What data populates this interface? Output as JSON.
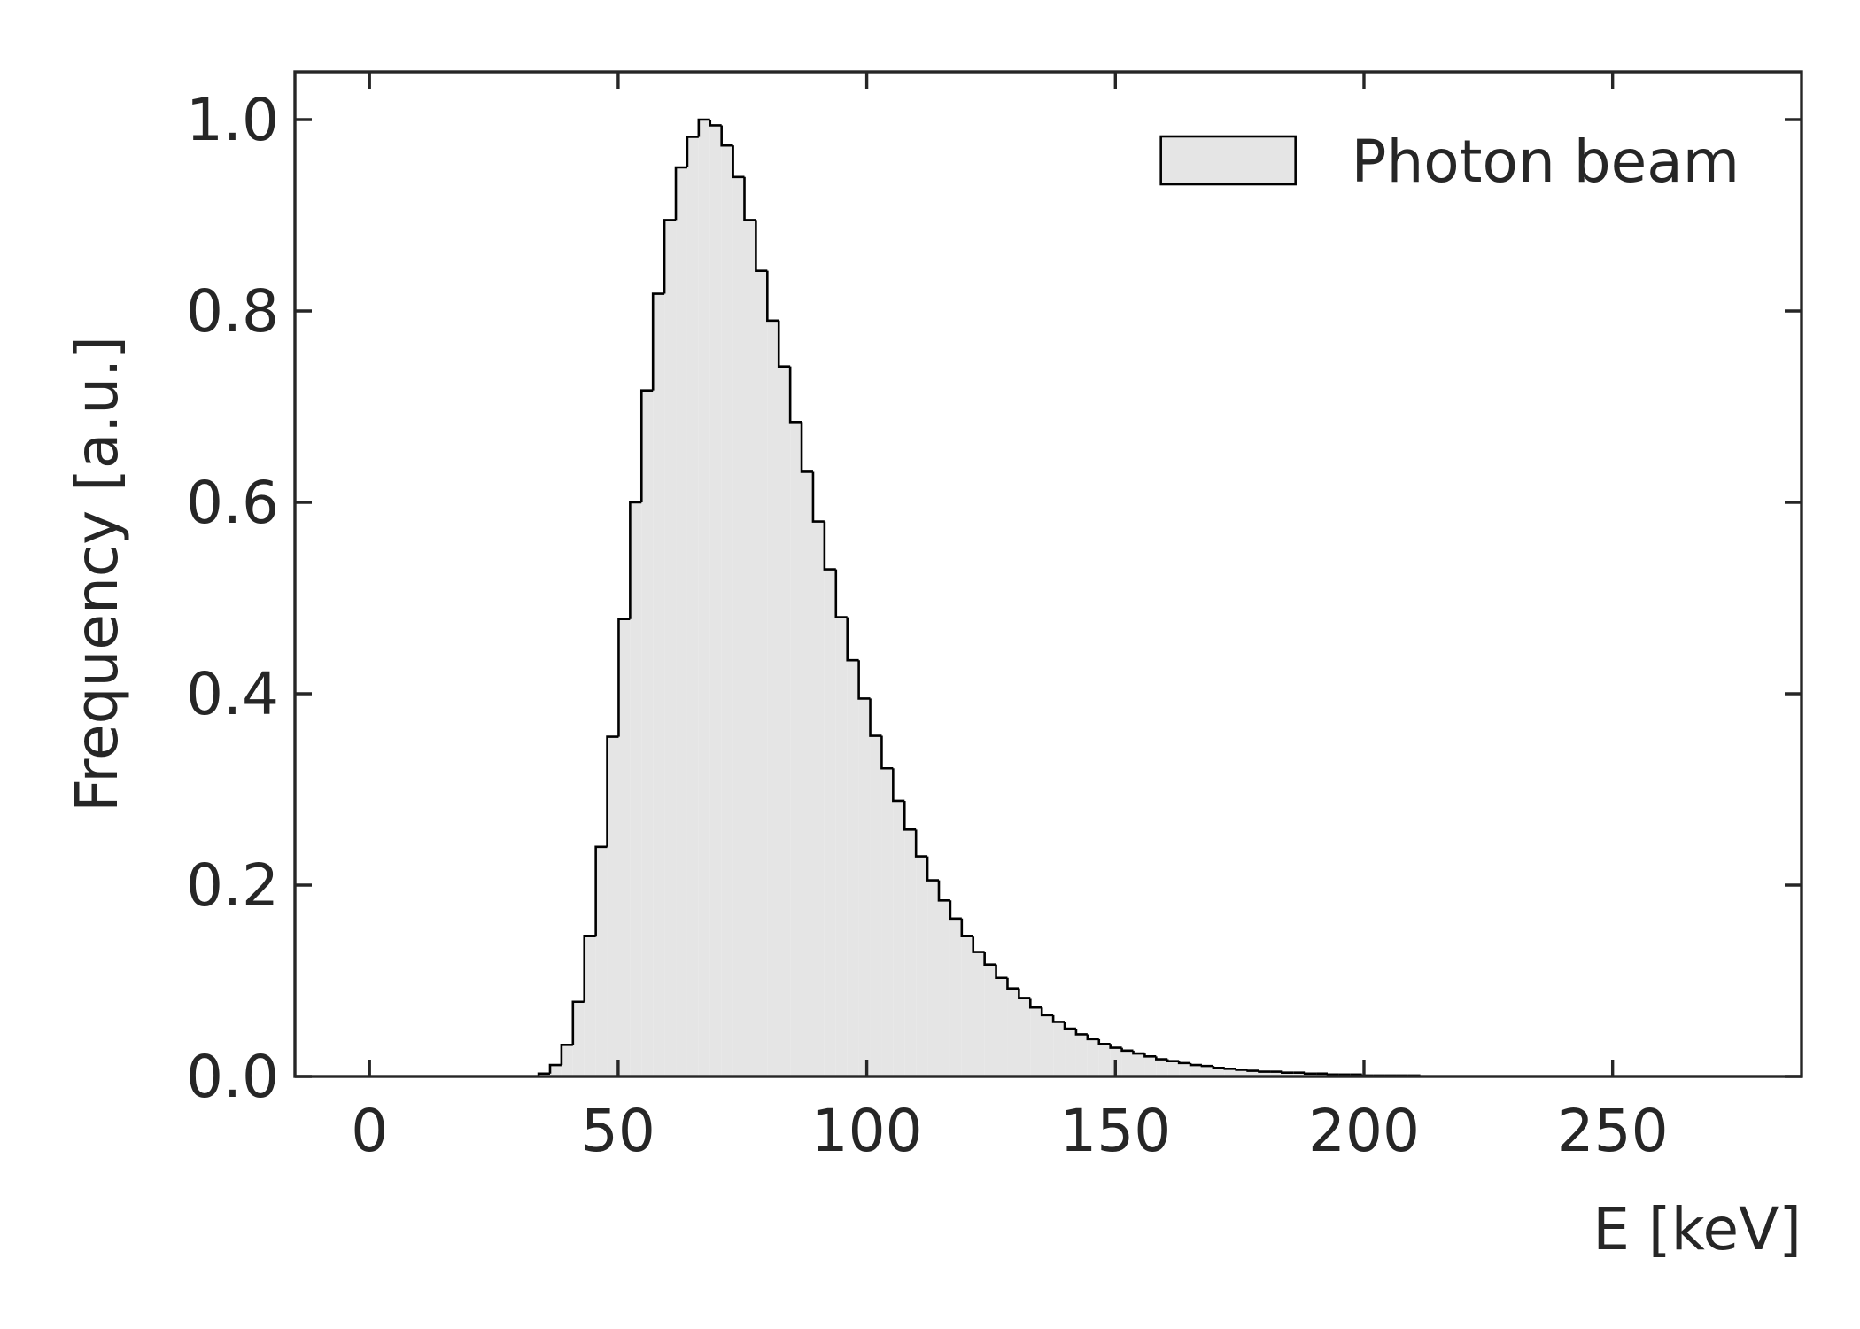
{
  "chart_data": {
    "type": "histogram",
    "xlabel": "E [keV]",
    "ylabel": "Frequency [a.u.]",
    "bins": [
      34,
      36.3,
      38.6,
      40.9,
      43.2,
      45.5,
      47.8,
      50.1,
      52.4,
      54.7,
      57,
      59.3,
      61.6,
      63.9,
      66.2,
      68.5,
      70.8,
      73.1,
      75.4,
      77.7,
      80,
      82.3,
      84.6,
      86.9,
      89.2,
      91.5,
      93.8,
      96.1,
      98.4,
      100.7,
      103,
      105.3,
      107.6,
      109.9,
      112.2,
      114.5,
      116.8,
      119.1,
      121.4,
      123.7,
      126,
      128.3,
      130.6,
      132.9,
      135.2,
      137.5,
      139.8,
      142.1,
      144.4,
      146.7,
      149,
      151.3,
      153.6,
      155.9,
      158.2,
      160.5,
      162.8,
      165.1,
      167.4,
      169.7,
      172,
      174.3,
      176.6,
      178.9,
      181.2,
      183.5,
      185.8,
      188.1,
      190.4,
      192.7,
      195,
      197.3,
      199.6,
      201.9,
      204.2,
      206.5,
      208.8,
      211.1
    ],
    "series": [
      {
        "name": "Photon beam",
        "color": "#e5e5e5",
        "edgecolor": "#000000",
        "values": [
          0.003,
          0.012,
          0.033,
          0.078,
          0.147,
          0.24,
          0.355,
          0.478,
          0.6,
          0.717,
          0.818,
          0.895,
          0.95,
          0.982,
          1.0,
          0.994,
          0.973,
          0.94,
          0.895,
          0.842,
          0.79,
          0.742,
          0.684,
          0.632,
          0.58,
          0.53,
          0.48,
          0.435,
          0.395,
          0.356,
          0.322,
          0.288,
          0.258,
          0.23,
          0.205,
          0.184,
          0.165,
          0.147,
          0.13,
          0.117,
          0.103,
          0.092,
          0.082,
          0.072,
          0.064,
          0.057,
          0.05,
          0.044,
          0.039,
          0.034,
          0.03,
          0.027,
          0.024,
          0.021,
          0.018,
          0.016,
          0.014,
          0.012,
          0.011,
          0.009,
          0.008,
          0.007,
          0.006,
          0.005,
          0.005,
          0.004,
          0.004,
          0.003,
          0.003,
          0.002,
          0.002,
          0.002,
          0.001,
          0.001,
          0.001,
          0.001,
          0.001
        ]
      }
    ],
    "xlim": [
      -15,
      288
    ],
    "ylim": [
      0,
      1.05
    ],
    "xticks": [
      0,
      50,
      100,
      150,
      200,
      250
    ],
    "yticks": [
      {
        "value": 0,
        "label": "0.0"
      },
      0.2,
      0.4,
      0.6,
      0.8,
      {
        "value": 1,
        "label": "1.0"
      }
    ],
    "legend": "upper right"
  }
}
